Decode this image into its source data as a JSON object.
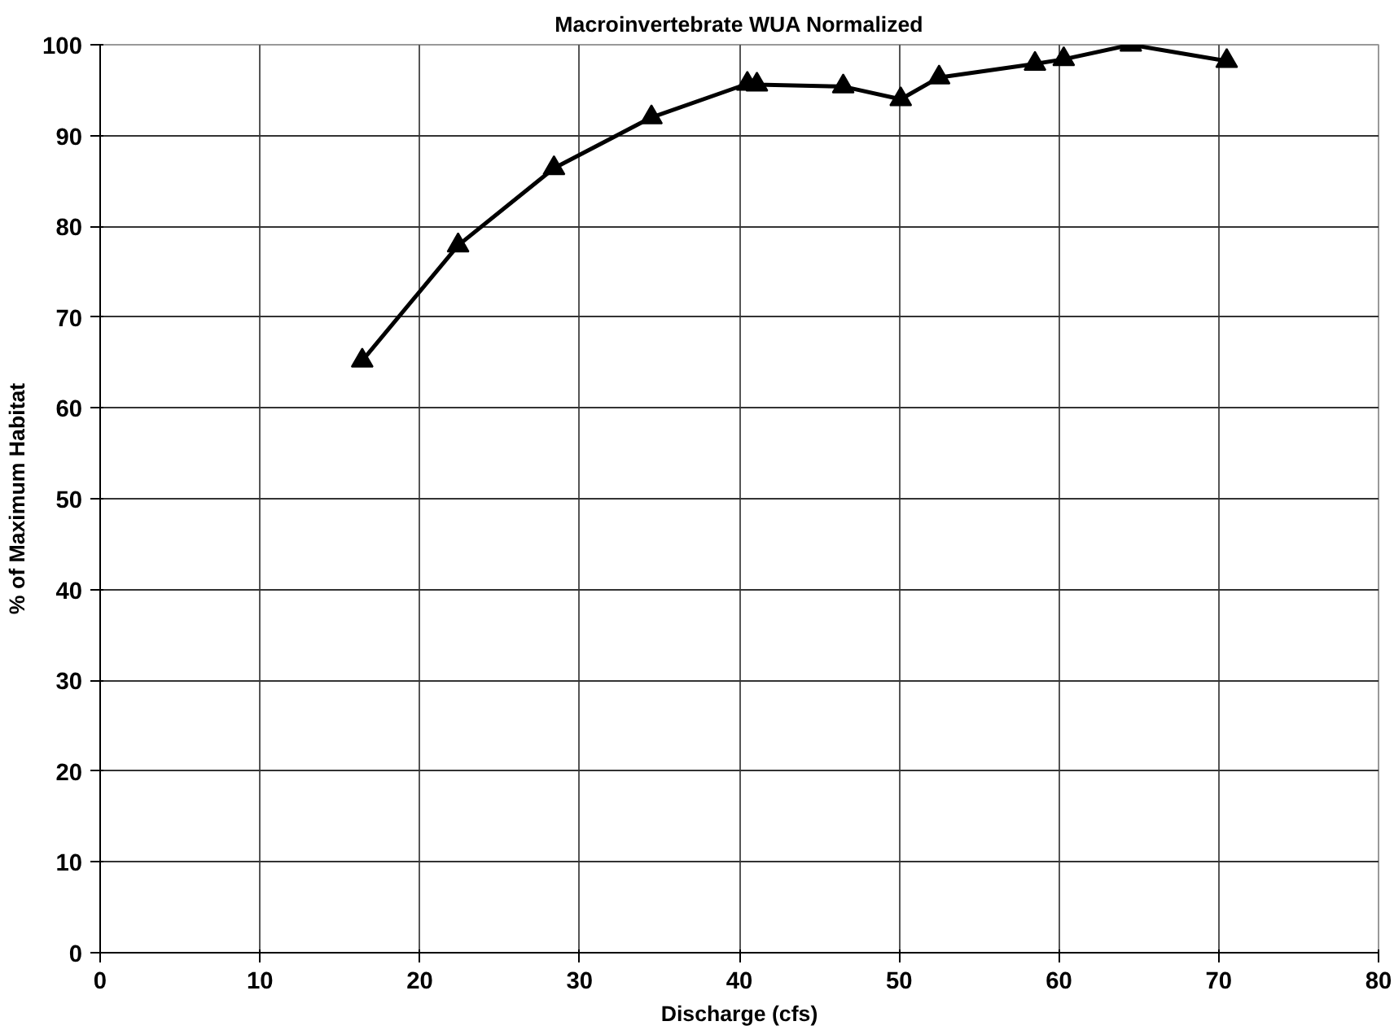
{
  "chart_data": {
    "type": "line",
    "title": "Macroinvertebrate WUA Normalized",
    "xlabel": "Discharge (cfs)",
    "ylabel": "% of Maximum Habitat",
    "x": [
      16.4,
      22.4,
      28.4,
      34.5,
      40.5,
      41.1,
      46.5,
      50.1,
      52.5,
      58.5,
      60.3,
      64.5,
      70.5
    ],
    "series": [
      {
        "color": "#000000",
        "values": [
          65.2,
          77.9,
          86.4,
          92.0,
          95.7,
          95.6,
          95.4,
          94.0,
          96.4,
          97.9,
          98.4,
          100.0,
          98.2
        ]
      }
    ],
    "xlim": [
      0,
      80
    ],
    "xticks": [
      0,
      10,
      20,
      30,
      40,
      50,
      60,
      70,
      80
    ],
    "ylim": [
      0,
      100
    ],
    "yticks": [
      0,
      10,
      20,
      30,
      40,
      50,
      60,
      70,
      80,
      90,
      100
    ],
    "grid": true,
    "marker": "triangle",
    "line_style": "solid"
  }
}
